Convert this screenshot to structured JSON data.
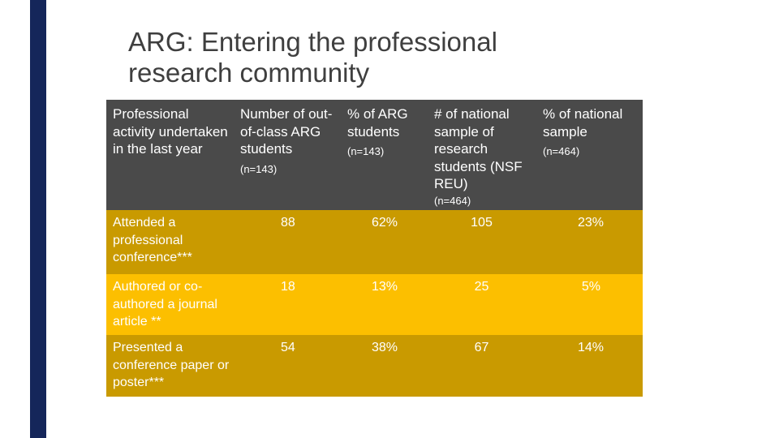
{
  "title": {
    "line1": "ARG: Entering the professional",
    "line2": "research community"
  },
  "colors": {
    "left_bar": "#15265a",
    "header_bg": "#4a4a4a",
    "row_dark": "#c99a00",
    "row_light": "#fcbf00"
  },
  "table": {
    "headers": [
      {
        "label": "Professional activity undertaken in the last year",
        "n": ""
      },
      {
        "label": "Number of out-of-class ARG students",
        "n": "(n=143)"
      },
      {
        "label": "% of ARG students",
        "n": "(n=143)"
      },
      {
        "label": "# of national sample of research students (NSF REU)",
        "n": "(n=464)"
      },
      {
        "label": "% of national sample",
        "n": "(n=464)"
      }
    ],
    "rows": [
      {
        "activity": "Attended a professional conference***",
        "arg_count": "88",
        "arg_pct": "62%",
        "nat_count": "105",
        "nat_pct": "23%"
      },
      {
        "activity": "Authored or co-authored a journal article **",
        "arg_count": "18",
        "arg_pct": "13%",
        "nat_count": "25",
        "nat_pct": "5%"
      },
      {
        "activity": "Presented a conference paper or poster***",
        "arg_count": "54",
        "arg_pct": "38%",
        "nat_count": "67",
        "nat_pct": "14%"
      }
    ]
  }
}
